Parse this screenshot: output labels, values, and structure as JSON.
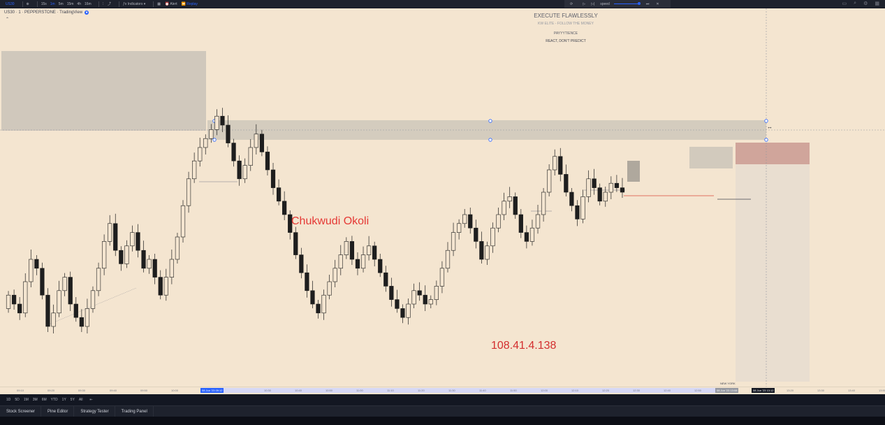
{
  "topbar": {
    "symbol": "US30",
    "intervals": [
      "15s",
      "1m",
      "5m",
      "15m",
      "4h",
      "16m"
    ],
    "active_interval": "1m",
    "indicators_label": "Indicators",
    "alert_label": "Alert",
    "replay_label": "Replay",
    "speed_label": "speed"
  },
  "chart_header": {
    "title": "US30 · 1 · PEPPERSTONE · TradingView"
  },
  "annotations": {
    "heading": "EXECUTE FLAWLESSLY",
    "sub1": "KW ELITE - FOLLOW THE MONEY",
    "sub2": "PAYYYTIENCE",
    "sub3": "REACT, DON'T PREDICT"
  },
  "watermark": "Chukwudi Okoli",
  "ip_overlay": "108.41.4.138",
  "session_label": "NEW YORK",
  "time_axis": {
    "ticks": [
      "09:10",
      "09:20",
      "09:30",
      "09:40",
      "09:50",
      "10:00",
      "10:20",
      "10:30",
      "10:40",
      "10:50",
      "11:00",
      "11:10",
      "11:20",
      "11:30",
      "11:40",
      "11:50",
      "12:00",
      "12:10",
      "12:20",
      "12:30",
      "12:40",
      "12:50",
      "13:00",
      "13:20",
      "13:30",
      "13:40",
      "13:50"
    ],
    "selected_start": "08 Jun '23   09:12",
    "selected_mid": "08 Jun '23   13:08",
    "selected_end": "08 Jun '23   13:12"
  },
  "range_buttons": [
    "1D",
    "5D",
    "1M",
    "3M",
    "6M",
    "YTD",
    "1Y",
    "5Y",
    "All"
  ],
  "bottom_panels": [
    "Stock Screener",
    "Pine Editor",
    "Strategy Tester",
    "Trading Panel"
  ],
  "colors": {
    "chart_bg": "#f4e5d0",
    "candle": "#1e1e1e",
    "zone_gray": "#c9c3b8",
    "zone_red": "#c99a92",
    "watermark": "#e53935",
    "accent": "#2962ff"
  },
  "chart_data": {
    "type": "candlestick",
    "title": "US30 · 1 · PEPPERSTONE",
    "xlabel": "",
    "ylabel": "",
    "candles_close_series": [
      0.62,
      0.6,
      0.58,
      0.65,
      0.7,
      0.68,
      0.62,
      0.55,
      0.58,
      0.63,
      0.66,
      0.6,
      0.57,
      0.55,
      0.59,
      0.63,
      0.68,
      0.74,
      0.78,
      0.72,
      0.69,
      0.73,
      0.76,
      0.72,
      0.68,
      0.7,
      0.66,
      0.62,
      0.66,
      0.7,
      0.75,
      0.82,
      0.88,
      0.92,
      0.95,
      0.97,
      0.99,
      1.02,
      1.0,
      0.96,
      0.92,
      0.88,
      0.91,
      0.95,
      0.98,
      0.94,
      0.9,
      0.86,
      0.83,
      0.8,
      0.76,
      0.71,
      0.67,
      0.63,
      0.6,
      0.58,
      0.62,
      0.65,
      0.68,
      0.71,
      0.74,
      0.7,
      0.68,
      0.71,
      0.73,
      0.7,
      0.67,
      0.64,
      0.61,
      0.59,
      0.57,
      0.6,
      0.63,
      0.62,
      0.6,
      0.61,
      0.64,
      0.68,
      0.72,
      0.76,
      0.78,
      0.8,
      0.77,
      0.74,
      0.7,
      0.73,
      0.77,
      0.8,
      0.83,
      0.84,
      0.8,
      0.76,
      0.74,
      0.77,
      0.8,
      0.85,
      0.9,
      0.93,
      0.89,
      0.85,
      0.82,
      0.79,
      0.84,
      0.88,
      0.86,
      0.83,
      0.85,
      0.87,
      0.86,
      0.85
    ]
  }
}
